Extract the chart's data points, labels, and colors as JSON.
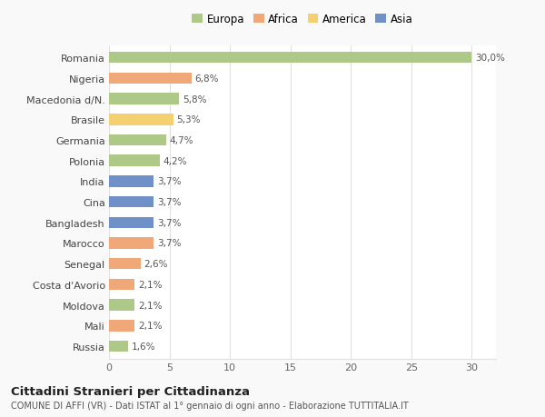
{
  "categories": [
    "Romania",
    "Nigeria",
    "Macedonia d/N.",
    "Brasile",
    "Germania",
    "Polonia",
    "India",
    "Cina",
    "Bangladesh",
    "Marocco",
    "Senegal",
    "Costa d'Avorio",
    "Moldova",
    "Mali",
    "Russia"
  ],
  "values": [
    30.0,
    6.8,
    5.8,
    5.3,
    4.7,
    4.2,
    3.7,
    3.7,
    3.7,
    3.7,
    2.6,
    2.1,
    2.1,
    2.1,
    1.6
  ],
  "bar_colors": [
    "#aec987",
    "#f0a878",
    "#aec987",
    "#f5d070",
    "#aec987",
    "#aec987",
    "#7090c8",
    "#7090c8",
    "#7090c8",
    "#f0a878",
    "#f0a878",
    "#f0a878",
    "#aec987",
    "#f0a878",
    "#aec987"
  ],
  "labels": [
    "30,0%",
    "6,8%",
    "5,8%",
    "5,3%",
    "4,7%",
    "4,2%",
    "3,7%",
    "3,7%",
    "3,7%",
    "3,7%",
    "2,6%",
    "2,1%",
    "2,1%",
    "2,1%",
    "1,6%"
  ],
  "legend": {
    "Europa": "#aec987",
    "Africa": "#f0a878",
    "America": "#f5d070",
    "Asia": "#7090c8"
  },
  "xlim": [
    0,
    32
  ],
  "xticks": [
    0,
    5,
    10,
    15,
    20,
    25,
    30
  ],
  "title": "Cittadini Stranieri per Cittadinanza",
  "subtitle": "COMUNE DI AFFI (VR) - Dati ISTAT al 1° gennaio di ogni anno - Elaborazione TUTTITALIA.IT",
  "background_color": "#f9f9f9",
  "plot_background": "#ffffff",
  "grid_color": "#e0e0e0",
  "bar_height": 0.55,
  "label_fontsize": 7.5,
  "ytick_fontsize": 8,
  "xtick_fontsize": 8
}
